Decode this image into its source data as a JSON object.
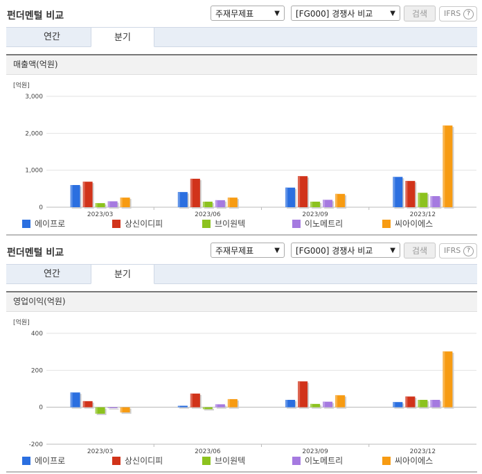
{
  "panels": [
    {
      "title": "펀더멘털 비교",
      "select1": "주재무제표",
      "select2": "[FG000] 경쟁사 비교",
      "search_label": "검색",
      "ifrs_label": "IFRS",
      "ifrs_help": "?",
      "tabs": [
        "연간",
        "분기"
      ],
      "active_tab": 1,
      "chart_title": "매출액(억원)",
      "unit": "[억원]"
    },
    {
      "title": "펀더멘털 비교",
      "select1": "주재무제표",
      "select2": "[FG000] 경쟁사 비교",
      "search_label": "검색",
      "ifrs_label": "IFRS",
      "ifrs_help": "?",
      "tabs": [
        "연간",
        "분기"
      ],
      "active_tab": 1,
      "chart_title": "영업이익(억원)",
      "unit": "[억원]"
    }
  ],
  "chart_data": [
    {
      "type": "bar",
      "title": "매출액(억원)",
      "ylabel": "[억원]",
      "categories": [
        "2023/03",
        "2023/06",
        "2023/09",
        "2023/12"
      ],
      "ylim": [
        0,
        3000
      ],
      "yticks": [
        0,
        1000,
        2000,
        3000
      ],
      "ytick_labels": [
        "0",
        "1,000",
        "2,000",
        "3,000"
      ],
      "series": [
        {
          "name": "에이프로",
          "color": "#2b6fe0",
          "values": [
            600,
            410,
            530,
            820
          ]
        },
        {
          "name": "상신이디피",
          "color": "#d1331a",
          "values": [
            690,
            770,
            840,
            710
          ]
        },
        {
          "name": "브이원텍",
          "color": "#8cc21e",
          "values": [
            110,
            150,
            150,
            390
          ]
        },
        {
          "name": "이노메트리",
          "color": "#a57ae0",
          "values": [
            160,
            190,
            200,
            300
          ]
        },
        {
          "name": "씨아이에스",
          "color": "#f79b12",
          "values": [
            260,
            260,
            360,
            2210
          ]
        }
      ],
      "grid": true,
      "legend": "bottom"
    },
    {
      "type": "bar",
      "title": "영업이익(억원)",
      "ylabel": "[억원]",
      "categories": [
        "2023/03",
        "2023/06",
        "2023/09",
        "2023/12"
      ],
      "ylim": [
        -200,
        400
      ],
      "yticks": [
        -200,
        0,
        200,
        400
      ],
      "ytick_labels": [
        "-200",
        "0",
        "200",
        "400"
      ],
      "series": [
        {
          "name": "에이프로",
          "color": "#2b6fe0",
          "values": [
            80,
            8,
            40,
            28
          ]
        },
        {
          "name": "상신이디피",
          "color": "#d1331a",
          "values": [
            33,
            74,
            140,
            58
          ]
        },
        {
          "name": "브이원텍",
          "color": "#8cc21e",
          "values": [
            -35,
            -10,
            18,
            40
          ]
        },
        {
          "name": "이노메트리",
          "color": "#a57ae0",
          "values": [
            -5,
            16,
            30,
            40
          ]
        },
        {
          "name": "씨아이에스",
          "color": "#f79b12",
          "values": [
            -28,
            44,
            65,
            302
          ]
        }
      ],
      "grid": true,
      "legend": "bottom"
    }
  ]
}
